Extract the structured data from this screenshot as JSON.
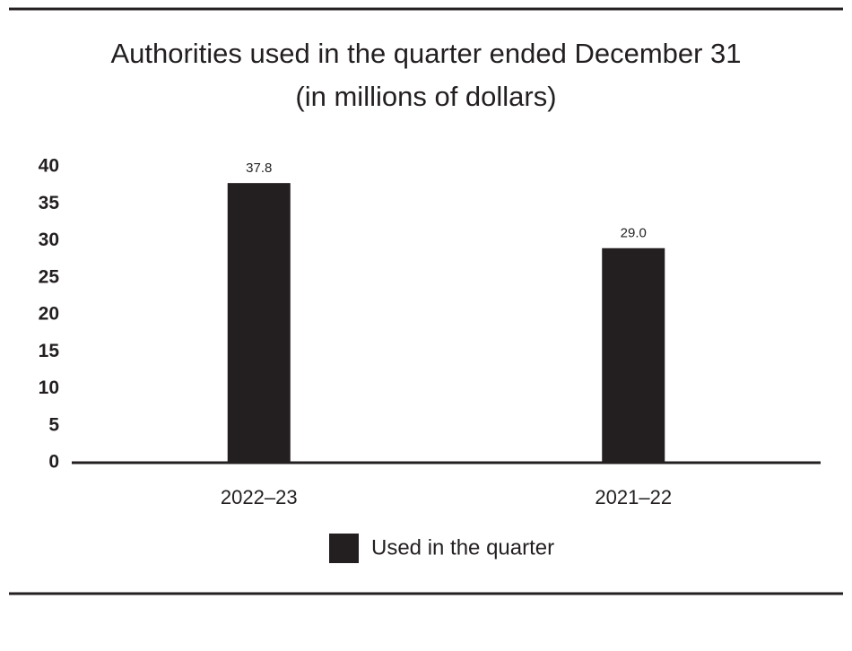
{
  "chart_data": {
    "type": "bar",
    "title": "Authorities used in the quarter ended December 31",
    "subtitle": "(in millions of dollars)",
    "categories": [
      "2022–23",
      "2021–22"
    ],
    "series": [
      {
        "name": "Used in the quarter",
        "color": "#231f20",
        "values": [
          37.8,
          29.0
        ],
        "value_labels": [
          "37.8",
          "29.0"
        ]
      }
    ],
    "ylim": [
      0,
      40
    ],
    "yticks": [
      0,
      5,
      10,
      15,
      20,
      25,
      30,
      35,
      40
    ],
    "grid": false
  }
}
